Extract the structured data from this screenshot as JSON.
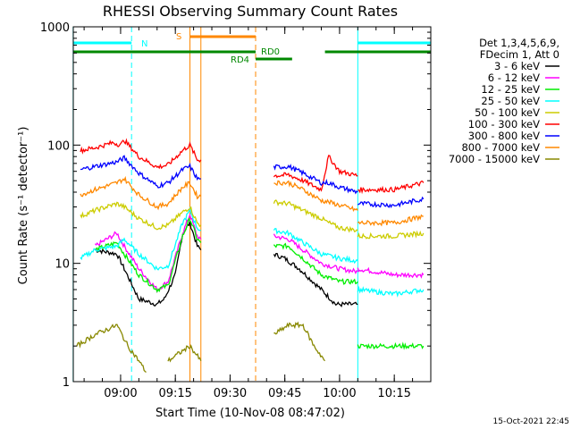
{
  "chart_data": {
    "type": "line",
    "title": "RHESSI Observing Summary Count Rates",
    "xlabel": "Start Time (10-Nov-08 08:47:02)",
    "ylabel": "Count Rate (s⁻¹ detector⁻¹)",
    "yscale": "log",
    "ylim": [
      1,
      1000
    ],
    "xlim": [
      "08:47:02",
      "10:25:00"
    ],
    "x_ticks": [
      "09:00",
      "09:15",
      "09:30",
      "09:45",
      "10:00",
      "10:15"
    ],
    "y_ticks": [
      "1",
      "10",
      "100",
      "1000"
    ],
    "legend_header": [
      "Det 1,3,4,5,6,9,",
      "FDecim 1, Att 0"
    ],
    "legend_position": "right",
    "series": [
      {
        "name": "3 - 6 keV",
        "color": "#000000",
        "segments": [
          [
            [
              "08:47",
              null
            ],
            [
              "08:53",
              13
            ],
            [
              "08:59",
              12
            ],
            [
              "09:01",
              9
            ],
            [
              "09:05",
              5
            ],
            [
              "09:10",
              4.5
            ],
            [
              "09:12",
              5
            ],
            [
              "09:15",
              8
            ],
            [
              "09:17",
              18
            ],
            [
              "09:19",
              22
            ],
            [
              "09:21",
              14
            ],
            [
              "09:22",
              13
            ]
          ],
          [
            [
              "09:42",
              12
            ],
            [
              "09:45",
              11
            ],
            [
              "09:49",
              9
            ],
            [
              "09:55",
              6
            ],
            [
              "09:59",
              4.5
            ],
            [
              "10:05",
              4.5
            ]
          ]
        ]
      },
      {
        "name": "6 - 12 keV",
        "color": "#ff00ff",
        "segments": [
          [
            [
              "08:53",
              14
            ],
            [
              "08:59",
              18
            ],
            [
              "09:01",
              14
            ],
            [
              "09:05",
              9
            ],
            [
              "09:10",
              6
            ],
            [
              "09:13",
              7
            ],
            [
              "09:17",
              18
            ],
            [
              "09:19",
              26
            ],
            [
              "09:21",
              17
            ],
            [
              "09:22",
              16
            ]
          ],
          [
            [
              "09:42",
              17
            ],
            [
              "09:46",
              16
            ],
            [
              "09:50",
              13
            ],
            [
              "09:55",
              10
            ],
            [
              "10:00",
              9
            ],
            [
              "10:05",
              8.5
            ]
          ],
          [
            [
              "10:05",
              9
            ],
            [
              "10:15",
              8
            ],
            [
              "10:20",
              8
            ],
            [
              "10:23",
              8
            ]
          ]
        ]
      },
      {
        "name": "12 - 25 keV",
        "color": "#00ee00",
        "segments": [
          [
            [
              "08:53",
              13
            ],
            [
              "08:59",
              15
            ],
            [
              "09:01",
              12
            ],
            [
              "09:05",
              8
            ],
            [
              "09:10",
              6
            ],
            [
              "09:13",
              6.5
            ],
            [
              "09:17",
              17
            ],
            [
              "09:19",
              24
            ],
            [
              "09:21",
              16
            ],
            [
              "09:22",
              15
            ]
          ],
          [
            [
              "09:42",
              14
            ],
            [
              "09:46",
              14
            ],
            [
              "09:50",
              11
            ],
            [
              "09:55",
              8
            ],
            [
              "10:00",
              7
            ],
            [
              "10:05",
              7
            ]
          ],
          [
            [
              "10:05",
              2
            ],
            [
              "10:15",
              2
            ],
            [
              "10:23",
              2
            ]
          ]
        ]
      },
      {
        "name": "25 - 50 keV",
        "color": "#00ffff",
        "segments": [
          [
            [
              "08:49",
              11
            ],
            [
              "08:53",
              13
            ],
            [
              "08:59",
              14
            ],
            [
              "09:01",
              16
            ],
            [
              "09:05",
              12
            ],
            [
              "09:10",
              9
            ],
            [
              "09:13",
              9.5
            ],
            [
              "09:17",
              22
            ],
            [
              "09:19",
              28
            ],
            [
              "09:21",
              20
            ],
            [
              "09:22",
              19
            ]
          ],
          [
            [
              "09:42",
              19
            ],
            [
              "09:46",
              18
            ],
            [
              "09:50",
              15
            ],
            [
              "09:55",
              12
            ],
            [
              "10:00",
              11
            ],
            [
              "10:05",
              10.5
            ]
          ],
          [
            [
              "10:05",
              6
            ],
            [
              "10:15",
              5.5
            ],
            [
              "10:23",
              6
            ]
          ]
        ]
      },
      {
        "name": "50 - 100 keV",
        "color": "#cccc00",
        "segments": [
          [
            [
              "08:49",
              25
            ],
            [
              "08:53",
              28
            ],
            [
              "08:59",
              32
            ],
            [
              "09:01",
              30
            ],
            [
              "09:05",
              24
            ],
            [
              "09:10",
              20
            ],
            [
              "09:13",
              21
            ],
            [
              "09:17",
              27
            ],
            [
              "09:19",
              30
            ],
            [
              "09:21",
              22
            ],
            [
              "09:22",
              21
            ]
          ],
          [
            [
              "09:42",
              33
            ],
            [
              "09:46",
              32
            ],
            [
              "09:50",
              28
            ],
            [
              "09:55",
              24
            ],
            [
              "09:57",
              22
            ],
            [
              "10:00",
              20
            ],
            [
              "10:05",
              19
            ]
          ],
          [
            [
              "10:05",
              17
            ],
            [
              "10:15",
              17
            ],
            [
              "10:23",
              18
            ]
          ]
        ]
      },
      {
        "name": "100 - 300 keV",
        "color": "#ff0000",
        "segments": [
          [
            [
              "08:49",
              90
            ],
            [
              "08:53",
              95
            ],
            [
              "08:58",
              105
            ],
            [
              "09:00",
              100
            ],
            [
              "09:01",
              110
            ],
            [
              "09:05",
              80
            ],
            [
              "09:10",
              65
            ],
            [
              "09:13",
              68
            ],
            [
              "09:17",
              90
            ],
            [
              "09:19",
              100
            ],
            [
              "09:21",
              75
            ],
            [
              "09:22",
              75
            ]
          ],
          [
            [
              "09:42",
              55
            ],
            [
              "09:46",
              56
            ],
            [
              "09:50",
              50
            ],
            [
              "09:55",
              42
            ],
            [
              "09:57",
              80
            ],
            [
              "10:00",
              60
            ],
            [
              "10:05",
              55
            ]
          ],
          [
            [
              "10:05",
              42
            ],
            [
              "10:15",
              42
            ],
            [
              "10:23",
              48
            ]
          ]
        ]
      },
      {
        "name": "300 - 800 keV",
        "color": "#0000ff",
        "segments": [
          [
            [
              "08:49",
              62
            ],
            [
              "08:53",
              66
            ],
            [
              "08:59",
              72
            ],
            [
              "09:01",
              78
            ],
            [
              "09:05",
              58
            ],
            [
              "09:10",
              45
            ],
            [
              "09:13",
              48
            ],
            [
              "09:17",
              62
            ],
            [
              "09:19",
              66
            ],
            [
              "09:21",
              52
            ],
            [
              "09:22",
              52
            ]
          ],
          [
            [
              "09:42",
              65
            ],
            [
              "09:46",
              66
            ],
            [
              "09:50",
              58
            ],
            [
              "09:55",
              48
            ],
            [
              "09:57",
              48
            ],
            [
              "10:00",
              44
            ],
            [
              "10:05",
              40
            ]
          ],
          [
            [
              "10:05",
              32
            ],
            [
              "10:15",
              31
            ],
            [
              "10:23",
              35
            ]
          ]
        ]
      },
      {
        "name": "800 - 7000 keV",
        "color": "#ff8800",
        "segments": [
          [
            [
              "08:49",
              38
            ],
            [
              "08:53",
              42
            ],
            [
              "08:59",
              48
            ],
            [
              "09:01",
              52
            ],
            [
              "09:05",
              38
            ],
            [
              "09:10",
              30
            ],
            [
              "09:13",
              32
            ],
            [
              "09:17",
              44
            ],
            [
              "09:19",
              48
            ],
            [
              "09:21",
              37
            ],
            [
              "09:22",
              37
            ]
          ],
          [
            [
              "09:42",
              48
            ],
            [
              "09:46",
              48
            ],
            [
              "09:50",
              42
            ],
            [
              "09:55",
              34
            ],
            [
              "09:57",
              33
            ],
            [
              "10:00",
              31
            ],
            [
              "10:05",
              28
            ]
          ],
          [
            [
              "10:05",
              22
            ],
            [
              "10:15",
              22
            ],
            [
              "10:23",
              25
            ]
          ]
        ]
      },
      {
        "name": "7000 - 15000 keV",
        "color": "#888800",
        "segments": [
          [
            [
              "08:48",
              2
            ],
            [
              "08:53",
              2.5
            ],
            [
              "08:59",
              3
            ],
            [
              "09:02",
              2
            ],
            [
              "09:05",
              1.5
            ],
            [
              "09:07",
              1.2
            ]
          ],
          [
            [
              "09:13",
              1.5
            ],
            [
              "09:19",
              2
            ],
            [
              "09:22",
              1.5
            ]
          ],
          [
            [
              "09:42",
              2.5
            ],
            [
              "09:46",
              3
            ],
            [
              "09:50",
              3
            ],
            [
              "09:53",
              2
            ],
            [
              "09:56",
              1.5
            ]
          ]
        ]
      }
    ],
    "state_bars": {
      "N": {
        "label": "N",
        "color": "#00ffff",
        "segments": [
          [
            "08:47",
            "09:03"
          ],
          [
            "10:05",
            "10:25"
          ]
        ]
      },
      "S": {
        "label": "S",
        "color": "#ff8800",
        "segments": [
          [
            "09:19",
            "09:37"
          ]
        ]
      },
      "RD0": {
        "label": "RD0",
        "color": "#008800",
        "segments": [
          [
            "08:47",
            "09:37"
          ],
          [
            "09:37",
            "09:47"
          ],
          [
            "09:56",
            "10:25"
          ]
        ]
      },
      "RD4": {
        "label": "RD4",
        "color": "#008800"
      }
    },
    "vlines_dashed_cyan": [
      "09:03",
      "10:25"
    ],
    "vlines_solid_cyan": [
      "08:47",
      "10:05"
    ],
    "vlines_solid_orange": [
      "09:19",
      "09:22"
    ],
    "vline_dashed_orange": "09:37",
    "timestamp": "15-Oct-2021 22:45"
  }
}
